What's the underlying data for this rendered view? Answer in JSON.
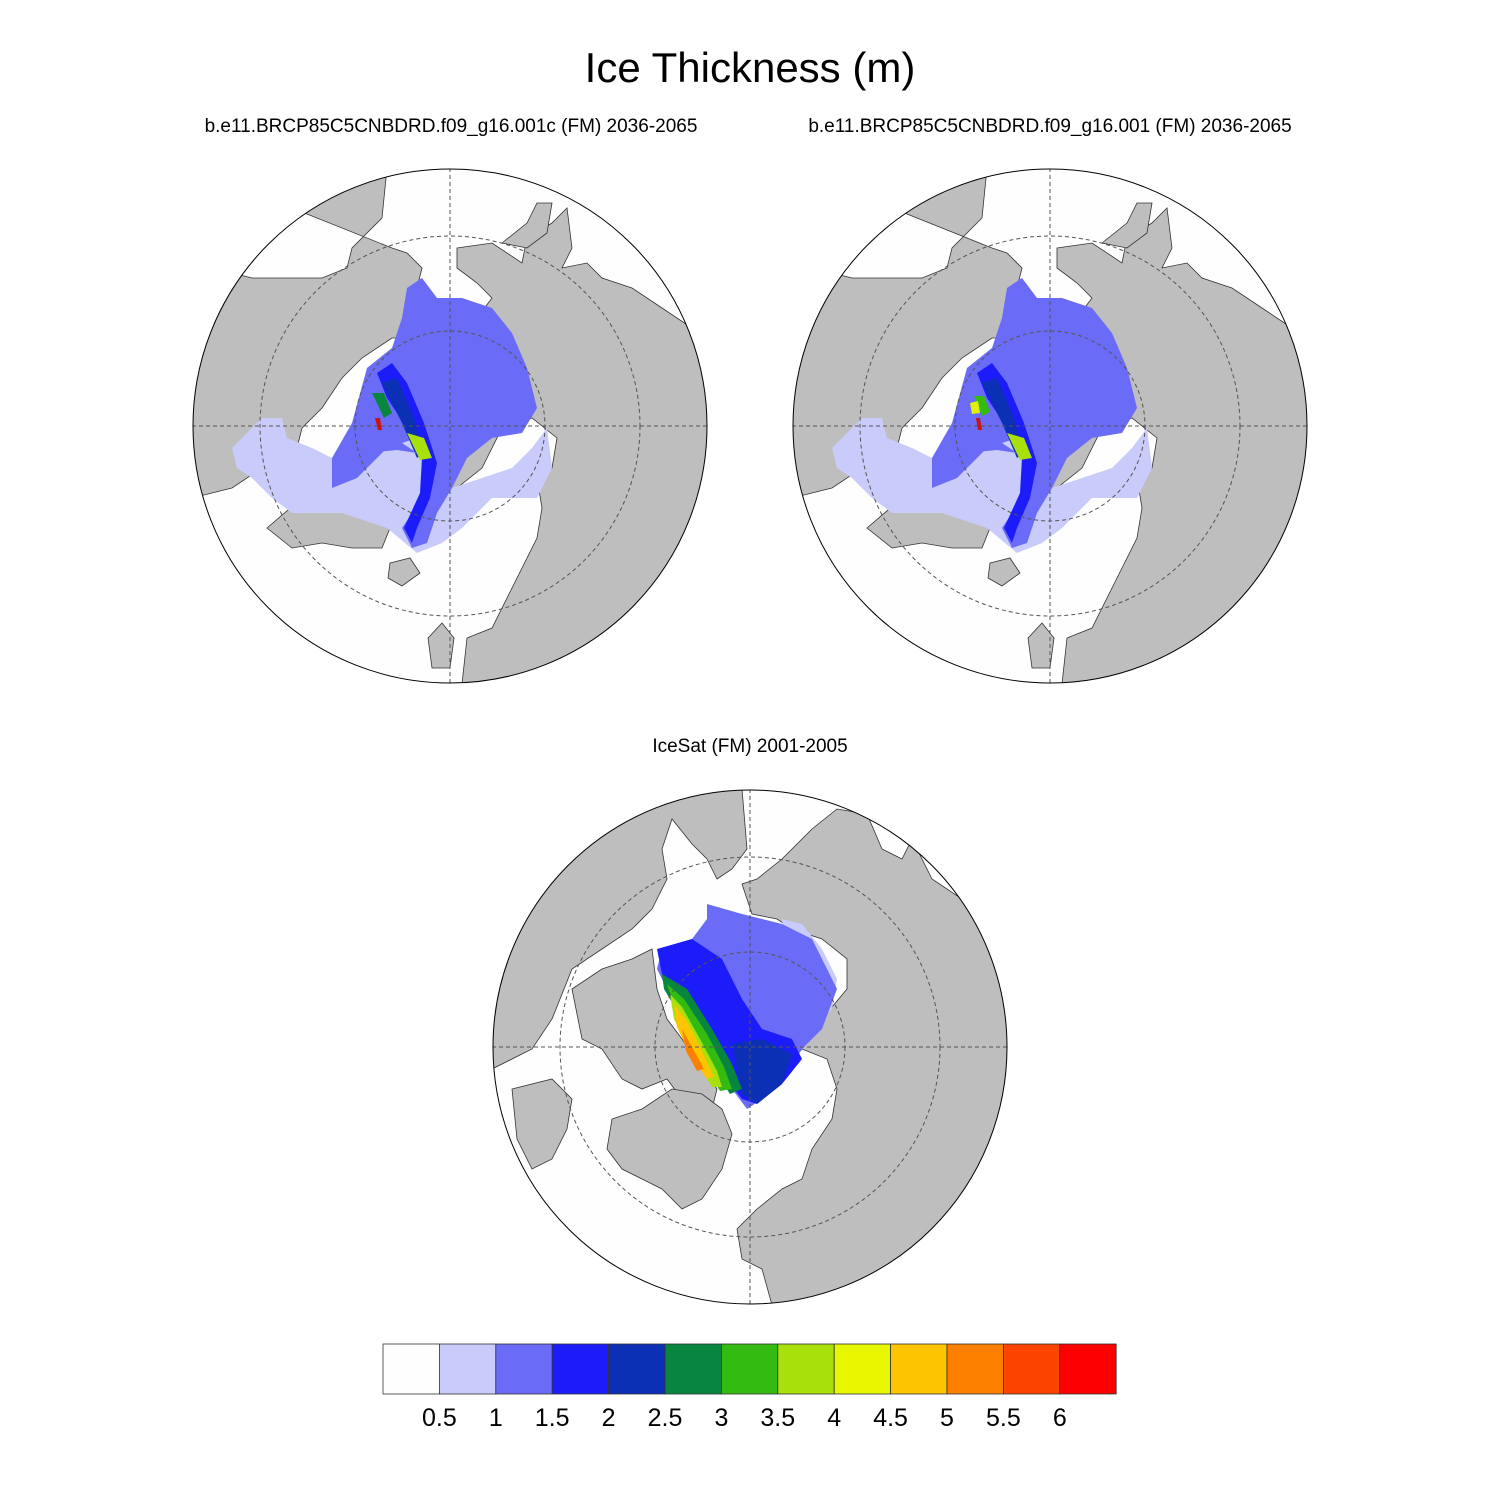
{
  "title": "Ice Thickness (m)",
  "panels": [
    {
      "id": "left",
      "subtitle": "b.e11.BRCP85C5CNBDRD.f09_g16.001c (FM) 2036-2065",
      "peak_color": "#cc1111"
    },
    {
      "id": "right",
      "subtitle": "b.e11.BRCP85C5CNBDRD.f09_g16.001 (FM) 2036-2065",
      "peak_color": "#e0f000"
    },
    {
      "id": "bottom",
      "subtitle": "IceSat (FM) 2001-2005"
    }
  ],
  "colorbar": {
    "labels": [
      "0.5",
      "1",
      "1.5",
      "2",
      "2.5",
      "3",
      "3.5",
      "4",
      "4.5",
      "5",
      "5.5",
      "6"
    ],
    "colors": [
      "#fefefe",
      "#c9cbfb",
      "#6a6cf7",
      "#1b1cf9",
      "#0b2fb5",
      "#08863f",
      "#33bb12",
      "#a8e00a",
      "#e6f700",
      "#fdc400",
      "#fd7f00",
      "#fd4300",
      "#fd0000"
    ]
  },
  "colors": {
    "land": "#bebebe",
    "ocean": "#fefefe",
    "graticule": "#555555"
  }
}
